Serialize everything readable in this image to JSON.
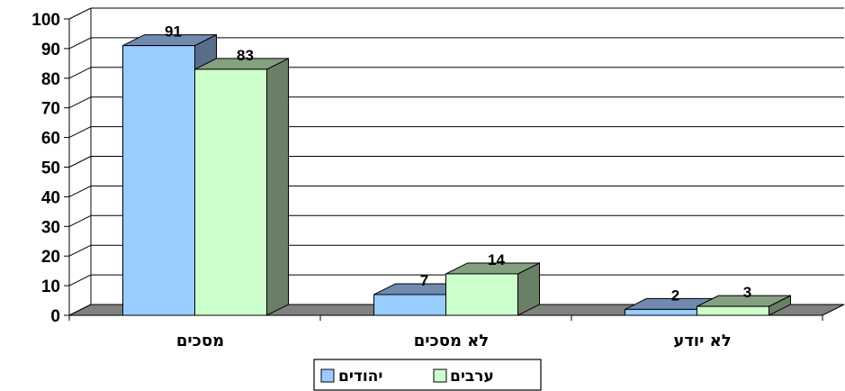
{
  "chart_data": {
    "type": "bar",
    "categories": [
      "מסכים",
      "לא מסכים",
      "לא יודע"
    ],
    "series": [
      {
        "name": "יהודים",
        "values": [
          91,
          7,
          2
        ],
        "color": "#99CCFF"
      },
      {
        "name": "ערבים",
        "values": [
          83,
          14,
          3
        ],
        "color": "#CCFFCC"
      }
    ],
    "ylim": [
      0,
      100
    ],
    "yticks": [
      "0",
      "10",
      "20",
      "30",
      "40",
      "50",
      "60",
      "70",
      "80",
      "90",
      "100"
    ],
    "data_labels": [
      [
        "91",
        "7",
        "2"
      ],
      [
        "83",
        "14",
        "3"
      ]
    ],
    "title": "",
    "xlabel": "",
    "ylabel": "",
    "grid": true,
    "legend_position": "bottom",
    "style": "3d-clustered-column",
    "colors": {
      "floor": "#808080",
      "blue_side": "#5A6E8C",
      "green_side": "#6A8066",
      "outline": "#000000"
    }
  }
}
